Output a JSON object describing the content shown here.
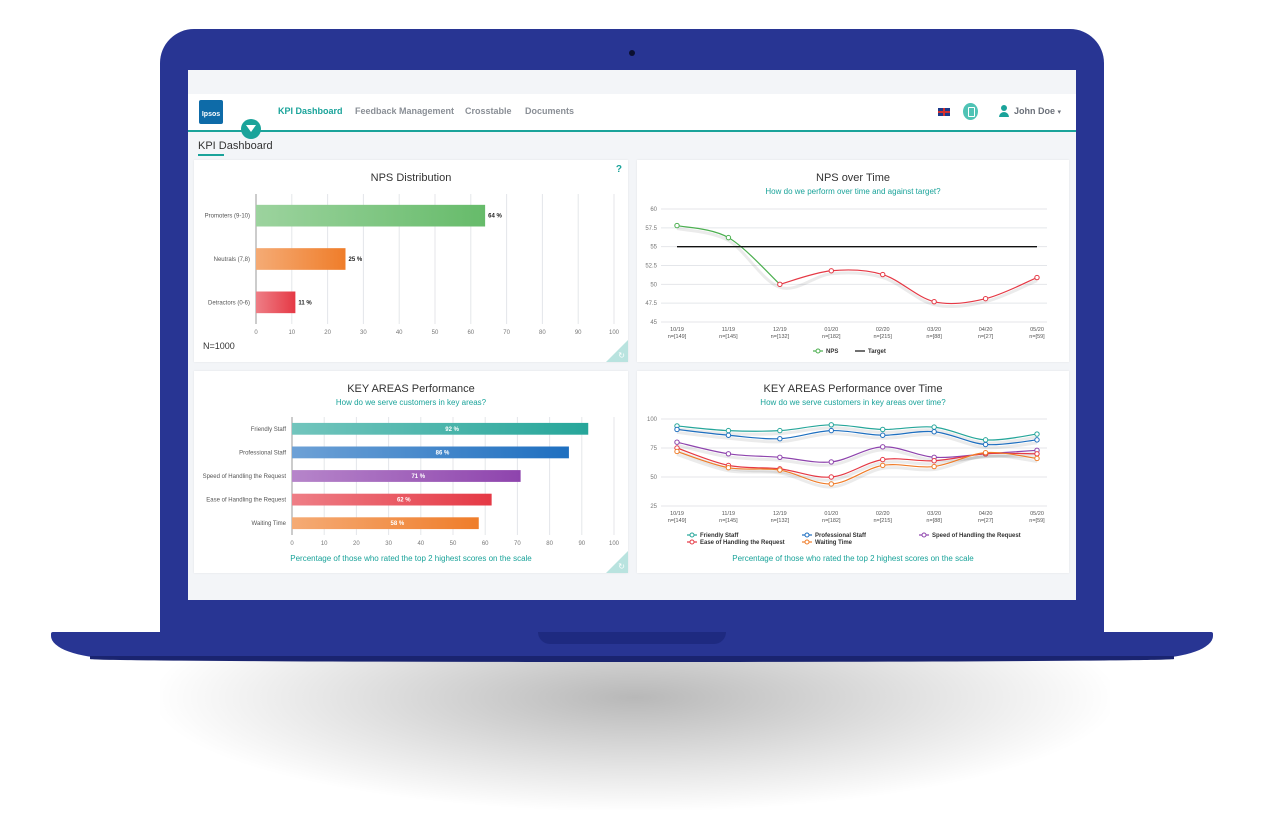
{
  "header": {
    "logo_text": "Ipsos",
    "nav": [
      {
        "label": "KPI Dashboard",
        "active": true
      },
      {
        "label": "Feedback Management",
        "active": false
      },
      {
        "label": "Crosstable",
        "active": false
      },
      {
        "label": "Documents",
        "active": false
      }
    ],
    "user_name": "John Doe",
    "user_caret": "▾"
  },
  "page": {
    "title": "KPI Dashboard"
  },
  "icons": [
    "filter-icon",
    "uk-flag-icon",
    "document-icon",
    "user-icon",
    "chevron-down-icon",
    "help-icon",
    "refresh-icon"
  ],
  "colors": {
    "accent": "#1aa39a",
    "laptop": "#283593"
  },
  "panels": {
    "nps_distribution": {
      "title": "NPS Distribution",
      "help": "?",
      "n_label": "N=1000"
    },
    "nps_over_time": {
      "title": "NPS over Time",
      "subtitle": "How do we perform over time and against target?"
    },
    "key_areas": {
      "title": "KEY AREAS Performance",
      "subtitle": "How do we serve customers in key areas?",
      "footer": "Percentage of those who rated the top 2 highest scores on the scale"
    },
    "key_areas_time": {
      "title": "KEY AREAS Performance over Time",
      "subtitle": "How do we serve customers in key areas over time?",
      "footer": "Percentage of those who rated the top 2 highest scores on the scale"
    }
  },
  "chart_data": [
    {
      "id": "nps_distribution",
      "type": "bar",
      "orientation": "horizontal",
      "categories": [
        "Promoters (9-10)",
        "Neutrals (7,8)",
        "Detractors (0-6)"
      ],
      "values": [
        64,
        25,
        11
      ],
      "value_labels": [
        "64 %",
        "25 %",
        "11 %"
      ],
      "colors": [
        "#66bb6a",
        "#ef7d2a",
        "#e53945"
      ],
      "xlim": [
        0,
        100
      ],
      "xticks": [
        "0",
        "10",
        "20",
        "30",
        "40",
        "50",
        "60",
        "70",
        "80",
        "90",
        "100"
      ],
      "grid": true
    },
    {
      "id": "nps_over_time",
      "type": "line",
      "x": [
        "10/19",
        "11/19",
        "12/19",
        "01/20",
        "02/20",
        "03/20",
        "04/20",
        "05/20"
      ],
      "x_sub": [
        "n=[149]",
        "n=[145]",
        "n=[132]",
        "n=[182]",
        "n=[215]",
        "n=[88]",
        "n=[27]",
        "n=[59]"
      ],
      "ylim": [
        45,
        60
      ],
      "yticks": [
        "60",
        "57.5",
        "55",
        "52.5",
        "50",
        "47.5",
        "45"
      ],
      "series": [
        {
          "name": "NPS",
          "values": [
            57.8,
            56.2,
            50.0,
            51.8,
            51.3,
            47.7,
            48.1,
            50.9
          ],
          "color": "#e53945",
          "legend_color": "#4caf50",
          "early_color": "#4caf50"
        },
        {
          "name": "Target",
          "values": [
            55,
            55,
            55,
            55,
            55,
            55,
            55,
            55
          ],
          "color": "#111111"
        }
      ],
      "legend": "bottom",
      "grid": true
    },
    {
      "id": "key_areas",
      "type": "bar",
      "orientation": "horizontal",
      "categories": [
        "Friendly Staff",
        "Professional Staff",
        "Speed of Handling the Request",
        "Ease of Handling the Request",
        "Waiting Time"
      ],
      "values": [
        92,
        86,
        71,
        62,
        58
      ],
      "value_labels": [
        "92 %",
        "86 %",
        "71 %",
        "62 %",
        "58 %"
      ],
      "colors": [
        "#26a69a",
        "#1e6fc0",
        "#8e44ad",
        "#e53945",
        "#ef7d2a"
      ],
      "xlim": [
        0,
        100
      ],
      "xticks": [
        "0",
        "10",
        "20",
        "30",
        "40",
        "50",
        "60",
        "70",
        "80",
        "90",
        "100"
      ],
      "grid": true
    },
    {
      "id": "key_areas_time",
      "type": "line",
      "x": [
        "10/19",
        "11/19",
        "12/19",
        "01/20",
        "02/20",
        "03/20",
        "04/20",
        "05/20"
      ],
      "x_sub": [
        "n=[149]",
        "n=[145]",
        "n=[132]",
        "n=[182]",
        "n=[215]",
        "n=[88]",
        "n=[27]",
        "n=[59]"
      ],
      "ylim": [
        25,
        100
      ],
      "yticks": [
        "100",
        "75",
        "50",
        "25"
      ],
      "series": [
        {
          "name": "Friendly Staff",
          "values": [
            94,
            90,
            90,
            95,
            91,
            93,
            82,
            87
          ],
          "color": "#26a69a"
        },
        {
          "name": "Professional Staff",
          "values": [
            91,
            86,
            83,
            90,
            86,
            89,
            78,
            82
          ],
          "color": "#1e6fc0"
        },
        {
          "name": "Speed of Handling the Request",
          "values": [
            80,
            70,
            67,
            63,
            76,
            67,
            70,
            73
          ],
          "color": "#8e44ad"
        },
        {
          "name": "Ease of Handling the Request",
          "values": [
            75,
            60,
            57,
            50,
            65,
            64,
            70,
            70
          ],
          "color": "#e53945"
        },
        {
          "name": "Waiting Time",
          "values": [
            72,
            58,
            56,
            44,
            60,
            59,
            71,
            66
          ],
          "color": "#ef7d2a"
        }
      ],
      "legend": "bottom",
      "grid": true
    }
  ]
}
